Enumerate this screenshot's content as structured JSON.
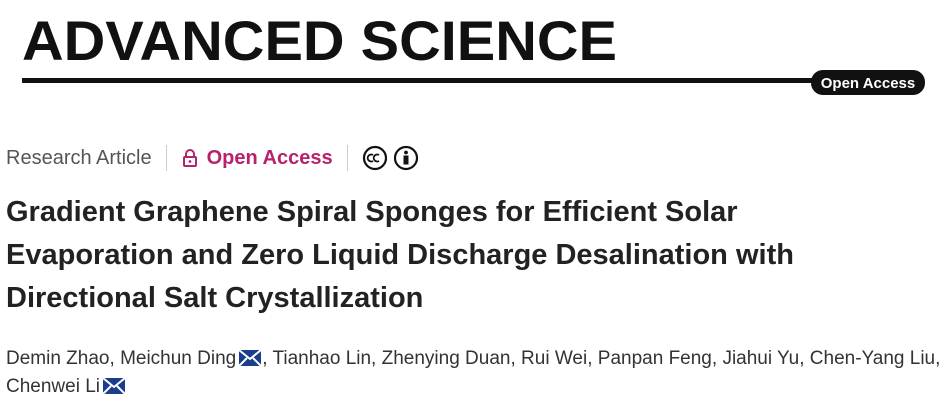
{
  "header": {
    "journal": "ADVANCED SCIENCE",
    "badge": "Open Access"
  },
  "meta": {
    "article_type": "Research Article",
    "access": "Open Access"
  },
  "title_lines": [
    "Gradient Graphene Spiral Sponges for Efficient Solar",
    "Evaporation and Zero Liquid Discharge Desalination with",
    "Directional Salt Crystallization"
  ],
  "author_separator": ",",
  "authors": [
    {
      "name": "Demin Zhao",
      "corresponding": false
    },
    {
      "name": "Meichun Ding",
      "corresponding": true
    },
    {
      "name": "Tianhao Lin",
      "corresponding": false
    },
    {
      "name": "Zhenying Duan",
      "corresponding": false
    },
    {
      "name": "Rui Wei",
      "corresponding": false
    },
    {
      "name": "Panpan Feng",
      "corresponding": false
    },
    {
      "name": "Jiahui Yu",
      "corresponding": false
    },
    {
      "name": "Chen-Yang Liu",
      "corresponding": false
    },
    {
      "name": "Chenwei Li",
      "corresponding": true
    }
  ]
}
